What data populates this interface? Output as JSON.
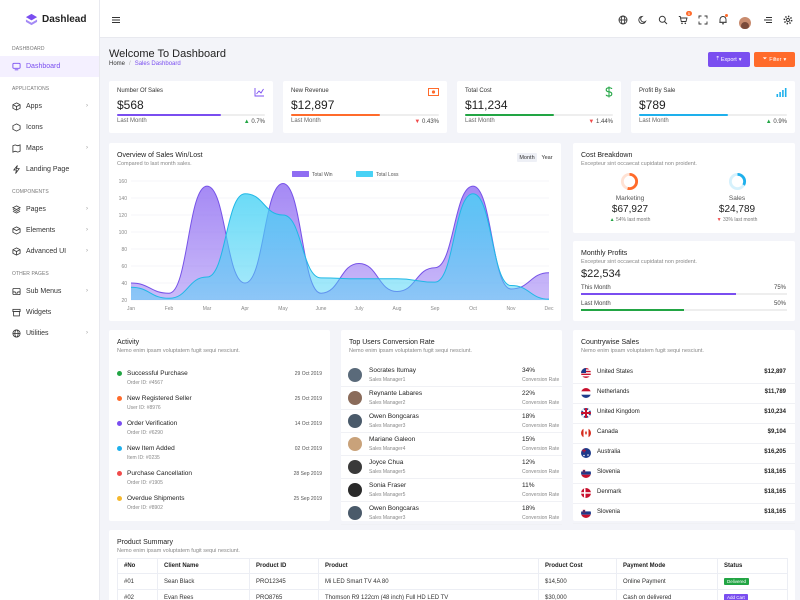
{
  "brand": {
    "name": "Dashlead"
  },
  "sidebar": {
    "sections": {
      "dashboard": "DASHBOARD",
      "applications": "APPLICATIONS",
      "components": "COMPONENTS",
      "other": "OTHER PAGES"
    },
    "items": [
      {
        "label": "Dashboard"
      },
      {
        "label": "Apps"
      },
      {
        "label": "Icons"
      },
      {
        "label": "Maps"
      },
      {
        "label": "Landing Page"
      },
      {
        "label": "Pages"
      },
      {
        "label": "Elements"
      },
      {
        "label": "Advanced UI"
      },
      {
        "label": "Sub Menus"
      },
      {
        "label": "Widgets"
      },
      {
        "label": "Utilities"
      }
    ]
  },
  "header": {
    "cart_badge": "5"
  },
  "page": {
    "title": "Welcome To Dashboard",
    "crumb_home": "Home",
    "crumb_sep": "/",
    "crumb_current": "Sales Dashboard"
  },
  "actions": {
    "export": "Export",
    "filter": "Filter"
  },
  "stats": [
    {
      "label": "Number Of Sales",
      "value": "$568",
      "foot": "Last Month",
      "pct": "0.7%",
      "trend": "up",
      "progress": 0.7,
      "color": "#7a4ef0"
    },
    {
      "label": "New Revenue",
      "value": "$12,897",
      "foot": "Last Month",
      "pct": "0.43%",
      "trend": "down",
      "progress": 0.6,
      "color": "#ff6b2b"
    },
    {
      "label": "Total Cost",
      "value": "$11,234",
      "foot": "Last Month",
      "pct": "1.44%",
      "trend": "down",
      "progress": 0.6,
      "color": "#22a544"
    },
    {
      "label": "Profit By Sale",
      "value": "$789",
      "foot": "Last Month",
      "pct": "0.9%",
      "trend": "up",
      "progress": 0.6,
      "color": "#1eb0ec"
    }
  ],
  "overview": {
    "title": "Overview of Sales Win/Lost",
    "subtitle": "Compared to last month sales.",
    "tab_month": "Month",
    "tab_year": "Year"
  },
  "chart_data": {
    "type": "area",
    "title": "Overview of Sales Win/Lost",
    "categories": [
      "Jan",
      "Feb",
      "Mar",
      "Apr",
      "May",
      "June",
      "July",
      "Aug",
      "Sep",
      "Oct",
      "Nov",
      "Dec"
    ],
    "series": [
      {
        "name": "Total Win",
        "color": "#8f6df2",
        "values": [
          40,
          28,
          154,
          40,
          157,
          28,
          63,
          30,
          58,
          154,
          33,
          52
        ]
      },
      {
        "name": "Total Loss",
        "color": "#48d2f5",
        "values": [
          35,
          22,
          47,
          145,
          120,
          46,
          45,
          45,
          41,
          145,
          37,
          21
        ]
      }
    ],
    "xlabel": "",
    "ylabel": "",
    "yticks": [
      20,
      40,
      60,
      80,
      100,
      120,
      140,
      160
    ],
    "ylim": [
      20,
      160
    ],
    "legend": "top-center",
    "grid": true
  },
  "cost": {
    "title": "Cost Breakdown",
    "subtitle": "Excepteur sint occaecat cupidatat non proident.",
    "items": [
      {
        "label": "Marketing",
        "value": "$67,927",
        "change": "54% last month",
        "trend": "up",
        "color": "#ff6b2b",
        "fraction": 0.54
      },
      {
        "label": "Sales",
        "value": "$24,789",
        "change": "33% last month",
        "trend": "down",
        "color": "#1eb0ec",
        "fraction": 0.33
      }
    ]
  },
  "profit": {
    "title": "Monthly Profits",
    "subtitle": "Excepteur sint occaecat cupidatat non proident.",
    "value": "$22,534",
    "rows": [
      {
        "label": "This Month",
        "pct": "75%",
        "fraction": 0.75,
        "color": "#7a4ef0"
      },
      {
        "label": "Last Month",
        "pct": "50%",
        "fraction": 0.5,
        "color": "#22a544"
      }
    ]
  },
  "activity": {
    "title": "Activity",
    "subtitle": "Nemo enim ipsam voluptatem fugit sequi nesciunt.",
    "items": [
      {
        "title": "Successful Purchase",
        "sub": "Order ID: #4567",
        "date": "29 Oct 2019",
        "color": "#22a544"
      },
      {
        "title": "New Registered Seller",
        "sub": "User ID: #8976",
        "date": "25 Oct 2019",
        "color": "#ff6b2b"
      },
      {
        "title": "Order Verification",
        "sub": "Order ID: #6290",
        "date": "14 Oct 2019",
        "color": "#7a4ef0"
      },
      {
        "title": "New Item Added",
        "sub": "Item ID: #0235",
        "date": "02 Oct 2019",
        "color": "#1eb0ec"
      },
      {
        "title": "Purchase Cancellation",
        "sub": "Order ID: #1905",
        "date": "28 Sep 2019",
        "color": "#f04b4b"
      },
      {
        "title": "Overdue Shipments",
        "sub": "Order ID: #8902",
        "date": "25 Sep 2019",
        "color": "#f5b82e"
      }
    ]
  },
  "users": {
    "title": "Top Users Conversion Rate",
    "subtitle": "Nemo enim ipsam voluptatem fugit sequi nesciunt.",
    "items": [
      {
        "name": "Socrates Itumay",
        "role": "Sales Manager1",
        "pct": "34%",
        "pct_label": "Conversion Rate",
        "color": "#5a6a7a"
      },
      {
        "name": "Reynante Labares",
        "role": "Sales Manager2",
        "pct": "22%",
        "pct_label": "Conversion Rate",
        "color": "#8a6b5a"
      },
      {
        "name": "Owen Bongcaras",
        "role": "Sales Manager3",
        "pct": "18%",
        "pct_label": "Conversion Rate",
        "color": "#4a5a6a"
      },
      {
        "name": "Mariane Galeon",
        "role": "Sales Manager4",
        "pct": "15%",
        "pct_label": "Conversion Rate",
        "color": "#c9a27a"
      },
      {
        "name": "Joyce Chua",
        "role": "Sales Manager5",
        "pct": "12%",
        "pct_label": "Conversion Rate",
        "color": "#3a3a3a"
      },
      {
        "name": "Sonia Fraser",
        "role": "Sales Manager5",
        "pct": "11%",
        "pct_label": "Conversion Rate",
        "color": "#2a2a2a"
      },
      {
        "name": "Owen Bongcaras",
        "role": "Sales Manager3",
        "pct": "18%",
        "pct_label": "Conversion Rate",
        "color": "#4a5a6a"
      }
    ]
  },
  "countries": {
    "title": "Countrywise Sales",
    "subtitle": "Nemo enim ipsam voluptatem fugit sequi nesciunt.",
    "items": [
      {
        "name": "United States",
        "value": "$12,897",
        "flag": "us"
      },
      {
        "name": "Netherlands",
        "value": "$11,789",
        "flag": "nl"
      },
      {
        "name": "United Kingdom",
        "value": "$10,234",
        "flag": "uk"
      },
      {
        "name": "Canada",
        "value": "$9,104",
        "flag": "ca"
      },
      {
        "name": "Australia",
        "value": "$16,205",
        "flag": "au"
      },
      {
        "name": "Slovenia",
        "value": "$18,165",
        "flag": "si"
      },
      {
        "name": "Denmark",
        "value": "$18,165",
        "flag": "dk"
      },
      {
        "name": "Slovenia",
        "value": "$18,165",
        "flag": "si"
      }
    ]
  },
  "products": {
    "title": "Product Summary",
    "subtitle": "Nemo enim ipsam voluptatem fugit sequi nesciunt.",
    "columns": [
      "#No",
      "Client Name",
      "Product ID",
      "Product",
      "Product Cost",
      "Payment Mode",
      "Status"
    ],
    "rows": [
      {
        "no": "#01",
        "client": "Sean Black",
        "pid": "PRO12345",
        "product": "Mi LED Smart TV 4A 80",
        "cost": "$14,500",
        "mode": "Online Payment",
        "status": "Delivered",
        "status_color": "#22a544"
      },
      {
        "no": "#02",
        "client": "Evan Rees",
        "pid": "PRO8765",
        "product": "Thomson R9 122cm (48 inch) Full HD LED TV",
        "cost": "$30,000",
        "mode": "Cash on delivered",
        "status": "Add Cart",
        "status_color": "#7a4ef0"
      }
    ]
  }
}
